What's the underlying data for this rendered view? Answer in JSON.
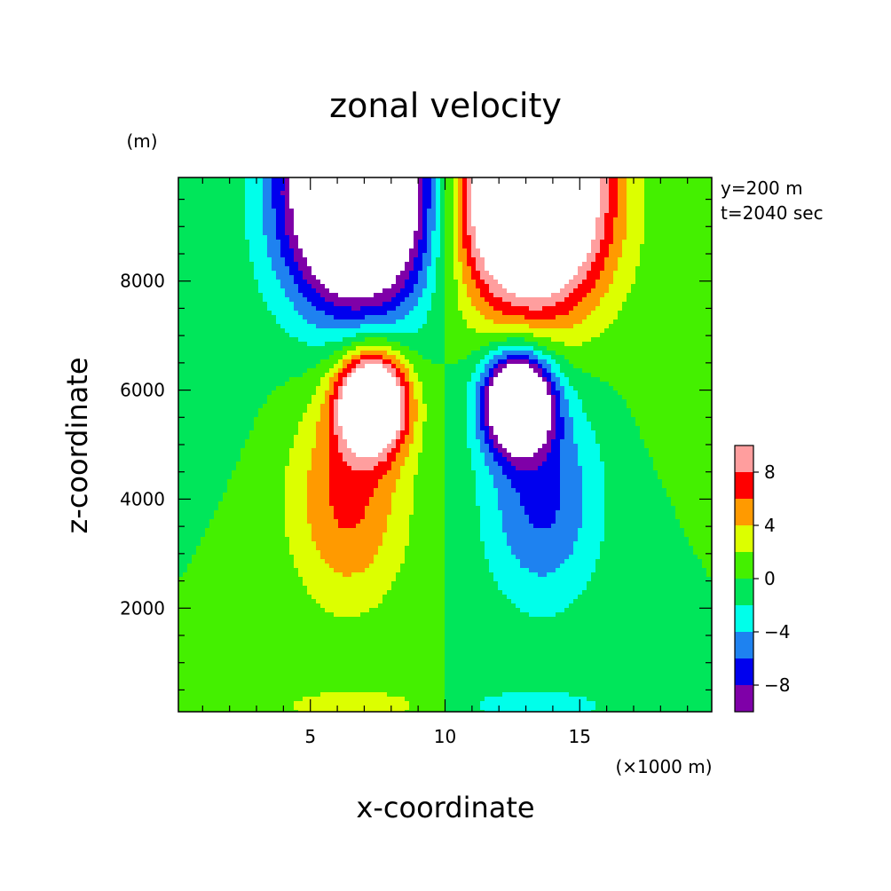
{
  "chart_data": {
    "type": "heatmap",
    "title": "zonal velocity",
    "xlabel": "x-coordinate",
    "ylabel": "z-coordinate",
    "x_unit": "(×1000 m)",
    "y_unit": "(m)",
    "annotations": [
      "y=200 m",
      "t=2040 sec"
    ],
    "xlim": [
      0.1,
      19.9
    ],
    "ylim": [
      100,
      9900
    ],
    "x_ticks": [
      5,
      10,
      15
    ],
    "x_tick_labels": [
      "5",
      "10",
      "15"
    ],
    "y_ticks": [
      2000,
      4000,
      6000,
      8000
    ],
    "y_tick_labels": [
      "2000",
      "4000",
      "6000",
      "8000"
    ],
    "colorbar": {
      "levels": [
        -10,
        -8,
        -6,
        -4,
        -2,
        0,
        2,
        4,
        6,
        8,
        10
      ],
      "tick_values": [
        -8,
        -4,
        0,
        4,
        8
      ],
      "tick_labels": [
        "−8",
        "−4",
        "0",
        "4",
        "8"
      ],
      "colors": [
        "#7f00a8",
        "#0000ee",
        "#1e82f0",
        "#00ffea",
        "#00e65a",
        "#44f000",
        "#dcff00",
        "#ff9a00",
        "#ff0000",
        "#ff9e9e"
      ],
      "over_color": "#ffffff",
      "under_color": "#ffffff"
    },
    "features": [
      {
        "name": "upper-left negative maximum",
        "x": 6.8,
        "z": 8800,
        "value_below": -10
      },
      {
        "name": "upper-right positive maximum",
        "x": 13.4,
        "z": 8800,
        "value_above": 10
      },
      {
        "name": "mid-left positive maximum",
        "x": 7.3,
        "z": 5800,
        "value_above": 10
      },
      {
        "name": "mid-right negative maximum",
        "x": 13.0,
        "z": 5800,
        "value_below": -10
      }
    ]
  }
}
